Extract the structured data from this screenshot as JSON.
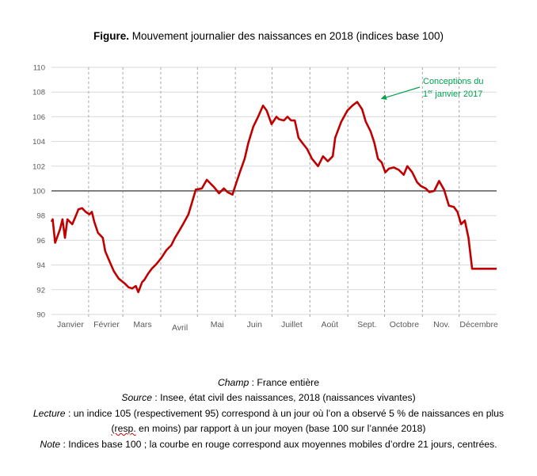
{
  "figure": {
    "title_bold": "Figure.",
    "title_rest": " Mouvement journalier des naissances en 2018 (indices base 100)"
  },
  "notes": {
    "champ_label": "Champ",
    "champ_text": " : France entière",
    "source_label": "Source",
    "source_text": " : Insee, état civil des naissances, 2018 (naissances vivantes)",
    "lecture_label": "Lecture",
    "lecture_text_1": " : un indice 105 (respectivement 95) correspond à un jour où l’on a observé 5 % de naissances en plus",
    "lecture_resp": "(resp.",
    "lecture_text_2": " en moins) par rapport à un jour moyen (base 100 sur l’année 2018)",
    "note_label": "Note",
    "note_text": " : Indices base 100 ; la courbe en rouge correspond aux moyennes mobiles d’ordre 21 jours, centrées."
  },
  "colors": {
    "series": "#c00000",
    "reference": "#808080",
    "grid": "#d9d9d9",
    "annotation": "#00a050",
    "axis_text": "#595959"
  },
  "chart_data": {
    "type": "line",
    "title": "Mouvement journalier des naissances en 2018 (indices base 100)",
    "xlabel": "",
    "ylabel": "",
    "ylim": [
      90,
      110
    ],
    "yticks": [
      90,
      92,
      94,
      96,
      98,
      100,
      102,
      104,
      106,
      108,
      110
    ],
    "xlim": [
      1,
      365
    ],
    "grid": true,
    "month_labels": [
      "Janvier",
      "Février",
      "Mars",
      "Avril",
      "Mai",
      "Juin",
      "Juillet",
      "Août",
      "Sept.",
      "Octobre",
      "Nov.",
      "Décembre"
    ],
    "month_start_days": [
      1,
      32,
      60,
      91,
      121,
      152,
      182,
      213,
      244,
      274,
      305,
      335
    ],
    "reference_line": {
      "value": 100
    },
    "annotation": {
      "text_line1": "Conceptions du",
      "text_line2_prefix": "1",
      "text_line2_sup": "er",
      "text_line2_suffix": " janvier 2017",
      "target_day": 269,
      "target_value": 107.2
    },
    "series": [
      {
        "name": "Moyenne mobile 21 jours (indice base 100)",
        "x": [
          1,
          2,
          4,
          8,
          10,
          12,
          14,
          18,
          21,
          23,
          26,
          29,
          32,
          34,
          36,
          39,
          43,
          45,
          48,
          52,
          56,
          61,
          64,
          67,
          70,
          72,
          75,
          77,
          80,
          83,
          87,
          91,
          95,
          99,
          102,
          105,
          108,
          113,
          116,
          119,
          124,
          128,
          134,
          138,
          142,
          145,
          149,
          152,
          155,
          159,
          162,
          166,
          170,
          174,
          177,
          181,
          185,
          187,
          191,
          194,
          197,
          200,
          203,
          206,
          210,
          214,
          219,
          223,
          227,
          231,
          233,
          238,
          243,
          247,
          251,
          255,
          258,
          262,
          265,
          268,
          271,
          274,
          277,
          281,
          285,
          289,
          292,
          296,
          300,
          303,
          307,
          310,
          314,
          318,
          322,
          326,
          330,
          333,
          336,
          339,
          342,
          345,
          348,
          352,
          354,
          357,
          365
        ],
        "values": [
          97.5,
          97.7,
          95.8,
          96.9,
          97.7,
          96.2,
          97.7,
          97.3,
          98.0,
          98.5,
          98.6,
          98.3,
          98.1,
          98.3,
          97.5,
          96.6,
          96.2,
          95.1,
          94.4,
          93.5,
          92.9,
          92.5,
          92.2,
          92.1,
          92.3,
          91.8,
          92.6,
          92.8,
          93.3,
          93.7,
          94.1,
          94.6,
          95.2,
          95.6,
          96.2,
          96.7,
          97.2,
          98.1,
          99.1,
          100.1,
          100.2,
          100.9,
          100.3,
          99.8,
          100.2,
          99.9,
          99.7,
          100.6,
          101.5,
          102.6,
          103.9,
          105.2,
          106.0,
          106.9,
          106.5,
          105.4,
          106.0,
          105.8,
          105.7,
          106.0,
          105.7,
          105.7,
          104.3,
          103.9,
          103.4,
          102.6,
          102.0,
          102.8,
          102.4,
          102.8,
          104.3,
          105.6,
          106.5,
          106.9,
          107.2,
          106.6,
          105.6,
          104.8,
          103.9,
          102.6,
          102.3,
          101.5,
          101.8,
          101.9,
          101.7,
          101.3,
          102.0,
          101.5,
          100.7,
          100.4,
          100.2,
          99.9,
          100.0,
          100.8,
          100.1,
          98.8,
          98.7,
          98.3,
          97.3,
          97.6,
          96.2,
          93.7,
          93.7,
          93.7,
          93.7,
          93.7,
          93.7
        ]
      }
    ]
  }
}
